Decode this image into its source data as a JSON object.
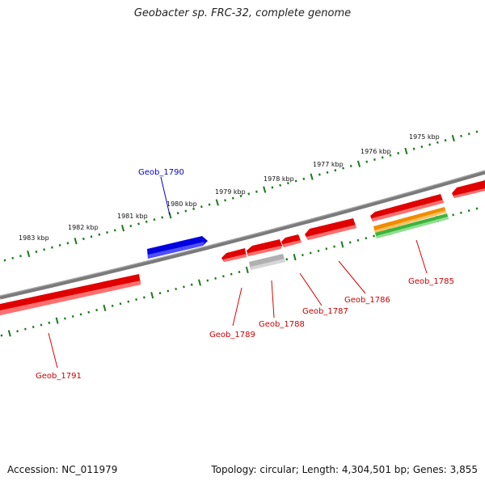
{
  "title": "Geobacter sp. FRC-32, complete genome",
  "footer": {
    "accession": "Accession: NC_011979",
    "topology": "Topology: circular; Length: 4,304,501 bp; Genes: 3,855"
  },
  "colors": {
    "backbone": "#808080",
    "tick": "#1a7a1a",
    "gene_forward": "#0000e0",
    "gene_reverse": "#e00000",
    "gene_pseudo": "#b0b0b0",
    "feature_orange": "#f08c00",
    "feature_green": "#3cb43c"
  },
  "kbp_labels": [
    "1983 kbp",
    "1982 kbp",
    "1981 kbp",
    "1980 kbp",
    "1979 kbp",
    "1978 kbp",
    "1977 kbp",
    "1976 kbp",
    "1975 kbp"
  ],
  "genes": [
    {
      "label": "Geob_1791",
      "color": "red"
    },
    {
      "label": "Geob_1790",
      "color": "blue"
    },
    {
      "label": "Geob_1789",
      "color": "red"
    },
    {
      "label": "Geob_1788",
      "color": "red"
    },
    {
      "label": "Geob_1787",
      "color": "red"
    },
    {
      "label": "Geob_1786",
      "color": "red"
    },
    {
      "label": "Geob_1785",
      "color": "red"
    }
  ]
}
